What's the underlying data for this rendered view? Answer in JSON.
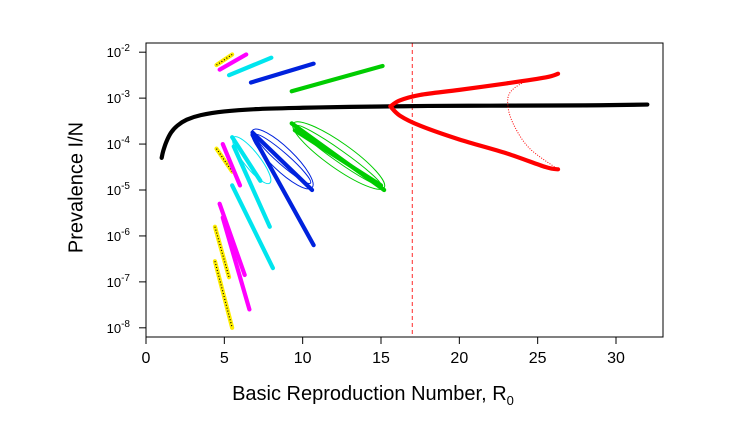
{
  "chart_data": {
    "type": "scatter",
    "title": "",
    "xlabel": "Basic Reproduction Number, R",
    "xlabel_subscript": "0",
    "ylabel": "Prevalence I/N",
    "xlim": [
      0,
      33
    ],
    "ylim_log10": [
      -8.2,
      -1.8
    ],
    "y_scale": "log",
    "x_ticks": [
      0,
      5,
      10,
      15,
      20,
      25,
      30
    ],
    "y_ticks": [
      {
        "base": "10",
        "exp": "-2",
        "value": -2
      },
      {
        "base": "10",
        "exp": "-3",
        "value": -3
      },
      {
        "base": "10",
        "exp": "-4",
        "value": -4
      },
      {
        "base": "10",
        "exp": "-5",
        "value": -5
      },
      {
        "base": "10",
        "exp": "-6",
        "value": -6
      },
      {
        "base": "10",
        "exp": "-7",
        "value": -7
      },
      {
        "base": "10",
        "exp": "-8",
        "value": -8
      }
    ],
    "vertical_line": {
      "x": 17.0,
      "color": "#ff4d4d",
      "style": "dashed"
    },
    "colors": {
      "black": "#000000",
      "yellow": "#ffee00",
      "magenta": "#ff00ff",
      "cyan": "#00e5ee",
      "blue": "#0022dd",
      "green": "#00cc00",
      "red": "#ff0000"
    },
    "series": [
      {
        "color": "black",
        "kind": "curve",
        "points": [
          [
            1.0,
            -4.3
          ],
          [
            1.1,
            -4.15
          ],
          [
            1.3,
            -3.95
          ],
          [
            1.6,
            -3.75
          ],
          [
            2.0,
            -3.6
          ],
          [
            2.6,
            -3.47
          ],
          [
            3.5,
            -3.37
          ],
          [
            5,
            -3.29
          ],
          [
            7,
            -3.24
          ],
          [
            10,
            -3.21
          ],
          [
            13,
            -3.19
          ],
          [
            15.6,
            -3.18
          ],
          [
            18,
            -3.17
          ],
          [
            22,
            -3.165
          ],
          [
            26,
            -3.16
          ],
          [
            29,
            -3.155
          ],
          [
            32,
            -3.14
          ]
        ]
      },
      {
        "color": "black",
        "kind": "segment",
        "points": [
          [
            17,
            -3.18
          ],
          [
            32,
            -3.16
          ]
        ],
        "style": "dotted"
      },
      {
        "color": "red",
        "kind": "curve",
        "points": [
          [
            15.6,
            -3.18
          ],
          [
            16.2,
            -3.05
          ],
          [
            17.5,
            -2.93
          ],
          [
            20,
            -2.82
          ],
          [
            23,
            -2.68
          ],
          [
            25.5,
            -2.55
          ],
          [
            26.3,
            -2.47
          ]
        ]
      },
      {
        "color": "red",
        "kind": "curve",
        "points": [
          [
            15.6,
            -3.18
          ],
          [
            16.2,
            -3.38
          ],
          [
            17.5,
            -3.6
          ],
          [
            20,
            -3.9
          ],
          [
            23,
            -4.2
          ],
          [
            25.5,
            -4.5
          ],
          [
            26.3,
            -4.55
          ]
        ]
      },
      {
        "color": "red",
        "kind": "dotted-curve",
        "points": [
          [
            26.3,
            -2.47
          ],
          [
            24.5,
            -2.6
          ],
          [
            23.3,
            -2.85
          ],
          [
            23.1,
            -3.17
          ],
          [
            23.5,
            -3.6
          ],
          [
            24.5,
            -4.1
          ],
          [
            26.3,
            -4.55
          ]
        ]
      },
      {
        "color": "yellow",
        "kind": "segment",
        "points": [
          [
            4.5,
            -2.28
          ],
          [
            5.5,
            -2.05
          ]
        ]
      },
      {
        "color": "yellow",
        "kind": "segment",
        "points": [
          [
            4.5,
            -4.1
          ],
          [
            5.5,
            -4.6
          ]
        ]
      },
      {
        "color": "yellow",
        "kind": "segment",
        "points": [
          [
            4.4,
            -5.8
          ],
          [
            5.3,
            -6.9
          ]
        ]
      },
      {
        "color": "yellow",
        "kind": "segment",
        "points": [
          [
            4.4,
            -6.55
          ],
          [
            5.5,
            -8.0
          ]
        ]
      },
      {
        "color": "magenta",
        "kind": "segment",
        "points": [
          [
            4.7,
            -2.38
          ],
          [
            6.4,
            -2.05
          ]
        ]
      },
      {
        "color": "magenta",
        "kind": "segment",
        "points": [
          [
            4.9,
            -4.0
          ],
          [
            6.0,
            -4.9
          ]
        ]
      },
      {
        "color": "magenta",
        "kind": "segment",
        "points": [
          [
            4.7,
            -5.3
          ],
          [
            6.3,
            -6.85
          ]
        ]
      },
      {
        "color": "magenta",
        "kind": "segment",
        "points": [
          [
            4.9,
            -5.6
          ],
          [
            6.6,
            -7.6
          ]
        ]
      },
      {
        "color": "cyan",
        "kind": "segment",
        "points": [
          [
            5.3,
            -2.5
          ],
          [
            8.0,
            -2.12
          ]
        ]
      },
      {
        "color": "cyan",
        "kind": "segment",
        "points": [
          [
            5.5,
            -3.85
          ],
          [
            7.3,
            -4.8
          ]
        ]
      },
      {
        "color": "cyan",
        "kind": "segment",
        "points": [
          [
            5.5,
            -4.9
          ],
          [
            8.1,
            -6.7
          ]
        ]
      },
      {
        "color": "cyan",
        "kind": "segment",
        "points": [
          [
            5.6,
            -4.05
          ],
          [
            7.9,
            -5.8
          ]
        ]
      },
      {
        "color": "blue",
        "kind": "segment",
        "points": [
          [
            6.7,
            -2.66
          ],
          [
            10.7,
            -2.25
          ]
        ]
      },
      {
        "color": "blue",
        "kind": "segment",
        "points": [
          [
            6.8,
            -3.75
          ],
          [
            10.6,
            -5.0
          ]
        ]
      },
      {
        "color": "blue",
        "kind": "segment",
        "points": [
          [
            6.8,
            -3.8
          ],
          [
            10.7,
            -6.2
          ]
        ]
      },
      {
        "color": "green",
        "kind": "segment",
        "points": [
          [
            9.3,
            -2.85
          ],
          [
            15.1,
            -2.3
          ]
        ]
      },
      {
        "color": "green",
        "kind": "segment",
        "points": [
          [
            9.3,
            -3.55
          ],
          [
            15.2,
            -5.0
          ]
        ]
      },
      {
        "color": "green",
        "kind": "segment",
        "points": [
          [
            9.5,
            -3.7
          ],
          [
            15.0,
            -4.9
          ]
        ]
      }
    ],
    "ellipses": [
      {
        "color": "cyan",
        "points": [
          [
            5.6,
            -3.85
          ],
          [
            7.9,
            -4.85
          ]
        ],
        "width_log": 0.35
      },
      {
        "color": "blue",
        "points": [
          [
            6.8,
            -3.7
          ],
          [
            10.6,
            -4.95
          ]
        ],
        "width_log": 0.5
      },
      {
        "color": "blue",
        "points": [
          [
            7.0,
            -3.8
          ],
          [
            10.5,
            -4.85
          ]
        ],
        "width_log": 0.25
      },
      {
        "color": "green",
        "points": [
          [
            9.4,
            -3.55
          ],
          [
            15.2,
            -4.95
          ]
        ],
        "width_log": 0.55
      },
      {
        "color": "green",
        "points": [
          [
            9.6,
            -3.6
          ],
          [
            15.0,
            -4.9
          ]
        ],
        "width_log": 0.25
      }
    ]
  }
}
